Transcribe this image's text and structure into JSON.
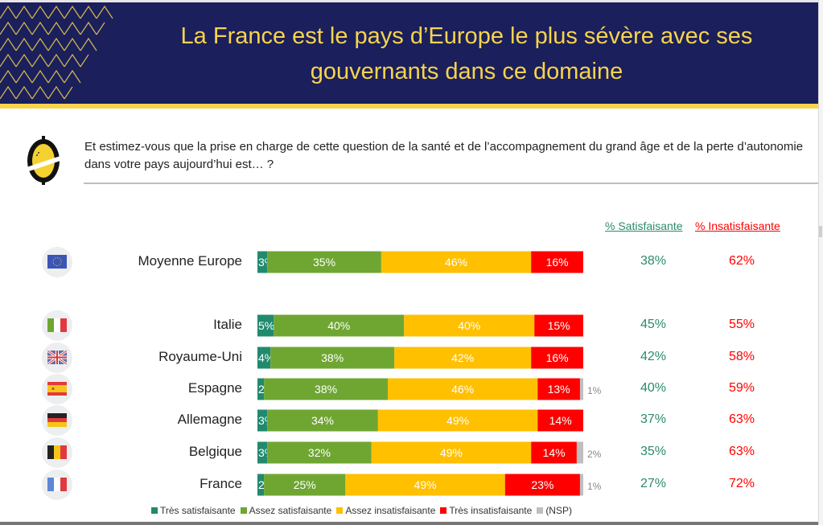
{
  "header": {
    "title_line1": "La France est le pays d’Europe le plus sévère avec ses",
    "title_line2": "gouvernants dans ce domaine",
    "bg_color": "#1b1f5c",
    "accent_color": "#f8d44c"
  },
  "question": "Et estimez-vous que la prise en charge de cette question de la santé et de l’accompagnement du grand âge et de la perte d’autonomie dans votre pays aujourd’hui est… ?",
  "columns": {
    "satisfaisante": "% Satisfaisante",
    "insatisfaisante": "% Insatisfaisante"
  },
  "chart_data": {
    "type": "bar",
    "orientation": "horizontal-stacked-100",
    "title": "La France est le pays d’Europe le plus sévère avec ses gouvernants dans ce domaine",
    "categories": [
      "Moyenne Europe",
      "Italie",
      "Royaume-Uni",
      "Espagne",
      "Allemagne",
      "Belgique",
      "France"
    ],
    "flags": [
      "eu-flag-icon",
      "italy-flag-icon",
      "uk-flag-icon",
      "spain-flag-icon",
      "germany-flag-icon",
      "belgium-flag-icon",
      "france-flag-icon"
    ],
    "series": [
      {
        "name": "Très satisfaisante",
        "color": "#218a6e",
        "values": [
          3,
          5,
          4,
          2,
          3,
          3,
          2
        ]
      },
      {
        "name": "Assez satisfaisante",
        "color": "#6fa632",
        "values": [
          35,
          40,
          38,
          38,
          34,
          32,
          25
        ]
      },
      {
        "name": "Assez insatisfaisante",
        "color": "#ffc000",
        "values": [
          46,
          40,
          42,
          46,
          49,
          49,
          49
        ]
      },
      {
        "name": "Très insatisfaisante",
        "color": "#ff0000",
        "values": [
          16,
          15,
          16,
          13,
          14,
          14,
          23
        ]
      },
      {
        "name": "(NSP)",
        "color": "#bfbfbf",
        "values": [
          0,
          0,
          0,
          1,
          0,
          2,
          1
        ]
      }
    ],
    "totals_satisfaisante": [
      "38%",
      "45%",
      "42%",
      "40%",
      "37%",
      "35%",
      "27%"
    ],
    "totals_insatisfaisante": [
      "62%",
      "55%",
      "58%",
      "59%",
      "63%",
      "63%",
      "72%"
    ],
    "xlim": [
      0,
      100
    ],
    "legend": "bottom",
    "grid": false
  },
  "legend_items": [
    "Très satisfaisante",
    "Assez satisfaisante",
    "Assez insatisfaisante",
    "Très insatisfaisante",
    "(NSP)"
  ]
}
